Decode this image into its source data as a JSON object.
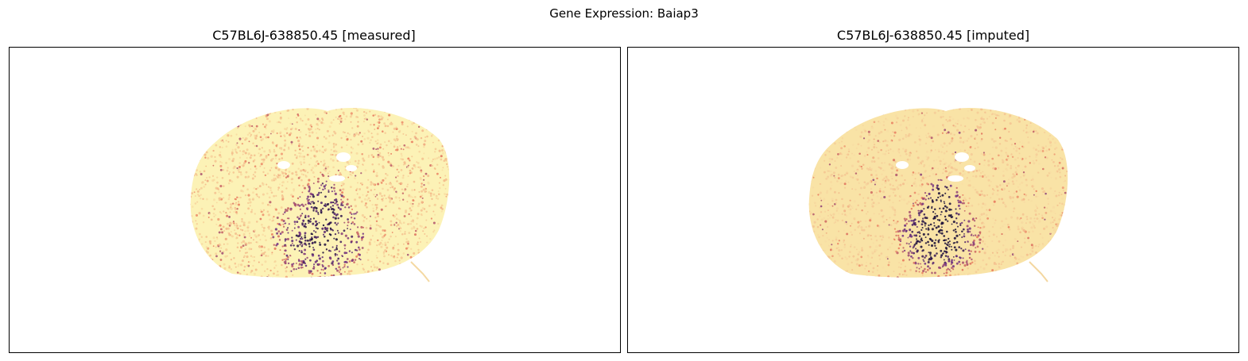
{
  "figure": {
    "suptitle": "Gene Expression: Baiap3"
  },
  "panels": [
    {
      "title": "C57BL6J-638850.45 [measured]"
    },
    {
      "title": "C57BL6J-638850.45 [imputed]"
    }
  ],
  "colormap": {
    "name": "magma_r",
    "low": "#fcf5b4",
    "mid": "#e8765a",
    "high": "#150b37",
    "accent": "#6a2b82"
  }
}
